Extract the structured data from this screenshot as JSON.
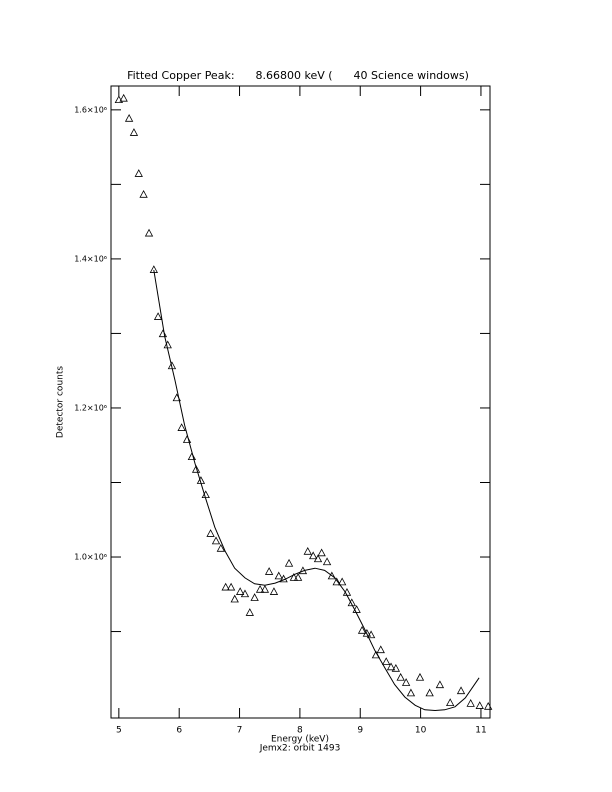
{
  "chart_data": {
    "type": "scatter",
    "title": "Fitted Copper Peak:      8.66800 keV (      40 Science windows)",
    "xlabel": "Energy (keV)",
    "ylabel": "Detector counts",
    "subtitle": "Jemx2: orbit 1493",
    "xlim": [
      4.87,
      11.15
    ],
    "ylim": [
      784000,
      1632000
    ],
    "xticks": [
      5,
      6,
      7,
      8,
      9,
      10,
      11
    ],
    "yticks": [
      {
        "value": 1000000,
        "label": "1.0×10⁶"
      },
      {
        "value": 1200000,
        "label": "1.2×10⁶"
      },
      {
        "value": 1400000,
        "label": "1.4×10⁶"
      },
      {
        "value": 1600000,
        "label": "1.6×10⁶"
      }
    ],
    "yminorticks": [
      900000,
      1100000,
      1300000,
      1500000
    ],
    "color": "#000000",
    "series": [
      {
        "name": "counts",
        "marker": "triangle",
        "x": [
          5.0,
          5.08,
          5.17,
          5.25,
          5.33,
          5.41,
          5.5,
          5.58,
          5.65,
          5.73,
          5.81,
          5.88,
          5.96,
          6.04,
          6.13,
          6.21,
          6.28,
          6.36,
          6.44,
          6.52,
          6.61,
          6.69,
          6.77,
          6.86,
          6.92,
          7.01,
          7.09,
          7.17,
          7.25,
          7.34,
          7.42,
          7.49,
          7.57,
          7.65,
          7.73,
          7.82,
          7.9,
          7.97,
          8.05,
          8.13,
          8.22,
          8.3,
          8.36,
          8.45,
          8.53,
          8.61,
          8.7,
          8.78,
          8.86,
          8.94,
          9.03,
          9.11,
          9.18,
          9.26,
          9.34,
          9.43,
          9.51,
          9.59,
          9.67,
          9.76,
          9.84,
          9.99,
          10.15,
          10.32,
          10.49,
          10.67,
          10.83,
          10.98,
          11.12
        ],
        "values": [
          1613000,
          1615000,
          1588000,
          1569000,
          1514000,
          1486000,
          1434000,
          1385000,
          1322000,
          1299000,
          1284000,
          1256000,
          1213000,
          1173000,
          1157000,
          1134000,
          1117000,
          1102000,
          1083000,
          1031000,
          1021000,
          1011000,
          959000,
          959000,
          943000,
          953000,
          950000,
          925000,
          945000,
          956000,
          956000,
          980000,
          953000,
          974000,
          970000,
          991000,
          972000,
          972000,
          981000,
          1007000,
          1001000,
          997000,
          1005000,
          993000,
          974000,
          966000,
          966000,
          952000,
          938000,
          929000,
          901000,
          897000,
          895000,
          868000,
          875000,
          859000,
          852000,
          850000,
          838000,
          831000,
          817000,
          838000,
          817000,
          828000,
          804000,
          820000,
          803000,
          800000,
          799000
        ]
      },
      {
        "name": "fit",
        "marker": "line",
        "x": [
          5.58,
          5.76,
          5.93,
          6.09,
          6.26,
          6.43,
          6.59,
          6.76,
          6.92,
          7.09,
          7.25,
          7.42,
          7.59,
          7.75,
          7.92,
          8.08,
          8.25,
          8.41,
          8.58,
          8.75,
          8.91,
          9.08,
          9.24,
          9.41,
          9.57,
          9.74,
          9.91,
          10.07,
          10.24,
          10.4,
          10.57,
          10.74,
          10.97
        ],
        "values": [
          1385000,
          1296000,
          1237000,
          1177000,
          1126000,
          1081000,
          1040000,
          1008000,
          985000,
          972000,
          964000,
          962000,
          965000,
          970000,
          977000,
          982000,
          985000,
          982000,
          972000,
          953000,
          929000,
          902000,
          875000,
          851000,
          829000,
          812000,
          801000,
          795000,
          794000,
          795000,
          799000,
          811000,
          838000
        ]
      }
    ]
  }
}
